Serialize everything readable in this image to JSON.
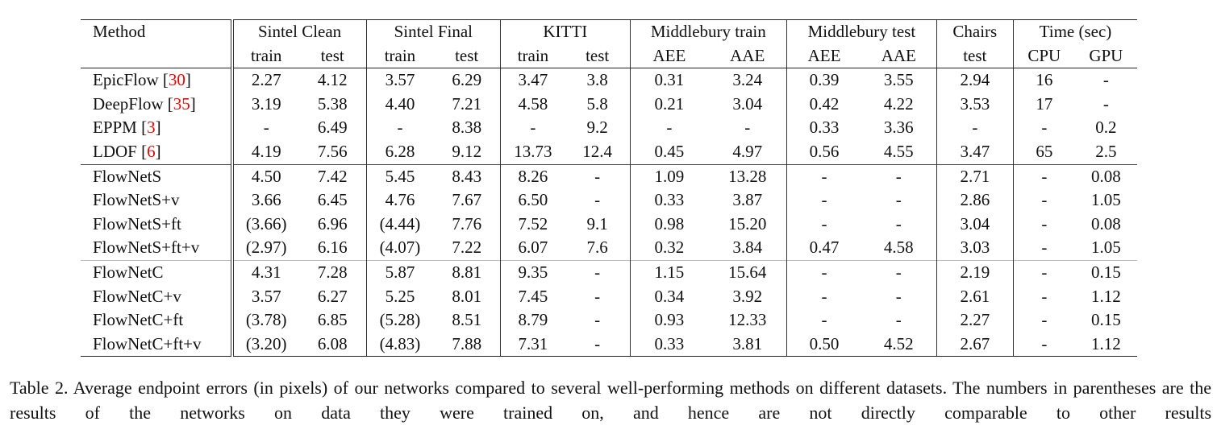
{
  "table": {
    "method_header": "Method",
    "groups": [
      {
        "label": "Sintel Clean",
        "sub": [
          "train",
          "test"
        ]
      },
      {
        "label": "Sintel Final",
        "sub": [
          "train",
          "test"
        ]
      },
      {
        "label": "KITTI",
        "sub": [
          "train",
          "test"
        ]
      },
      {
        "label": "Middlebury train",
        "sub": [
          "AEE",
          "AAE"
        ]
      },
      {
        "label": "Middlebury test",
        "sub": [
          "AEE",
          "AAE"
        ]
      },
      {
        "label": "Chairs",
        "sub": [
          "test"
        ]
      },
      {
        "label": "Time (sec)",
        "sub": [
          "CPU",
          "GPU"
        ]
      }
    ],
    "sections": [
      [
        {
          "method": "EpicFlow",
          "ref": [
            "[",
            "30",
            "]"
          ],
          "cells": [
            "2.27",
            "4.12",
            "3.57",
            "6.29",
            "3.47",
            "3.8",
            "0.31",
            "3.24",
            "0.39",
            "3.55",
            "2.94",
            "16",
            "-"
          ]
        },
        {
          "method": "DeepFlow",
          "ref": [
            "[",
            "35",
            "]"
          ],
          "cells": [
            "3.19",
            "5.38",
            "4.40",
            "7.21",
            "4.58",
            "5.8",
            "0.21",
            "3.04",
            "0.42",
            "4.22",
            "3.53",
            "17",
            "-"
          ]
        },
        {
          "method": "EPPM",
          "ref": [
            "[",
            "3",
            "]"
          ],
          "cells": [
            "-",
            "6.49",
            "-",
            "8.38",
            "-",
            "9.2",
            "-",
            "-",
            "0.33",
            "3.36",
            "-",
            "-",
            "0.2"
          ]
        },
        {
          "method": "LDOF",
          "ref": [
            "[",
            "6",
            "]"
          ],
          "cells": [
            "4.19",
            "7.56",
            "6.28",
            "9.12",
            "13.73",
            "12.4",
            "0.45",
            "4.97",
            "0.56",
            "4.55",
            "3.47",
            "65",
            "2.5"
          ]
        }
      ],
      [
        {
          "method": "FlowNetS",
          "cells": [
            "4.50",
            "7.42",
            "5.45",
            "8.43",
            "8.26",
            "-",
            "1.09",
            "13.28",
            "-",
            "-",
            "2.71",
            "-",
            "0.08"
          ]
        },
        {
          "method": "FlowNetS+v",
          "cells": [
            "3.66",
            "6.45",
            "4.76",
            "7.67",
            "6.50",
            "-",
            "0.33",
            "3.87",
            "-",
            "-",
            "2.86",
            "-",
            "1.05"
          ]
        },
        {
          "method": "FlowNetS+ft",
          "cells": [
            "(3.66)",
            "6.96",
            "(4.44)",
            "7.76",
            "7.52",
            "9.1",
            "0.98",
            "15.20",
            "-",
            "-",
            "3.04",
            "-",
            "0.08"
          ]
        },
        {
          "method": "FlowNetS+ft+v",
          "cells": [
            "(2.97)",
            "6.16",
            "(4.07)",
            "7.22",
            "6.07",
            "7.6",
            "0.32",
            "3.84",
            "0.47",
            "4.58",
            "3.03",
            "-",
            "1.05"
          ]
        }
      ],
      [
        {
          "method": "FlowNetC",
          "cells": [
            "4.31",
            "7.28",
            "5.87",
            "8.81",
            "9.35",
            "-",
            "1.15",
            "15.64",
            "-",
            "-",
            "2.19",
            "-",
            "0.15"
          ]
        },
        {
          "method": "FlowNetC+v",
          "cells": [
            "3.57",
            "6.27",
            "5.25",
            "8.01",
            "7.45",
            "-",
            "0.34",
            "3.92",
            "-",
            "-",
            "2.61",
            "-",
            "1.12"
          ]
        },
        {
          "method": "FlowNetC+ft",
          "cells": [
            "(3.78)",
            "6.85",
            "(5.28)",
            "8.51",
            "8.79",
            "-",
            "0.93",
            "12.33",
            "-",
            "-",
            "2.27",
            "-",
            "0.15"
          ]
        },
        {
          "method": "FlowNetC+ft+v",
          "cells": [
            "(3.20)",
            "6.08",
            "(4.83)",
            "7.88",
            "7.31",
            "-",
            "0.33",
            "3.81",
            "0.50",
            "4.52",
            "2.67",
            "-",
            "1.12"
          ]
        }
      ]
    ]
  },
  "caption": {
    "label": "Table 2.",
    "text": "Average endpoint errors (in pixels) of our networks compared to several well-performing methods on different datasets. The numbers in parentheses are the results of the networks on data they were trained on, and hence are not directly comparable to other results"
  }
}
